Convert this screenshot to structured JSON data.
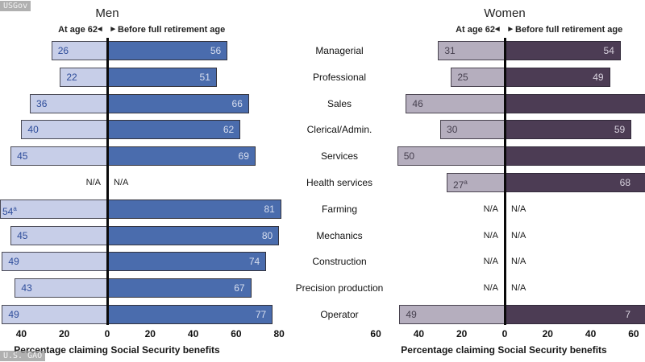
{
  "watermarks": {
    "top": "USGov",
    "bottom": "U.S. GAO"
  },
  "panels": {
    "men": {
      "title": "Men",
      "subtitle_left": "At age 62",
      "subtitle_arrows": "◄ ►",
      "subtitle_right": "Before full retirement age",
      "axis_label": "Percentage claiming Social Security benefits",
      "ticks": [
        {
          "label": "40",
          "v": -40
        },
        {
          "label": "20",
          "v": -20
        },
        {
          "label": "0",
          "v": 0
        },
        {
          "label": "20",
          "v": 20
        },
        {
          "label": "40",
          "v": 40
        },
        {
          "label": "60",
          "v": 60
        },
        {
          "label": "80",
          "v": 80
        }
      ]
    },
    "women": {
      "title": "Women",
      "subtitle_left": "At age 62",
      "subtitle_arrows": "◄ ►",
      "subtitle_right": "Before full retirement age",
      "axis_label": "Percentage claiming Social Security benefits",
      "ticks": [
        {
          "label": "60",
          "v": -60
        },
        {
          "label": "40",
          "v": -40
        },
        {
          "label": "20",
          "v": -20
        },
        {
          "label": "0",
          "v": 0
        },
        {
          "label": "20",
          "v": 20
        },
        {
          "label": "40",
          "v": 40
        },
        {
          "label": "60",
          "v": 60
        }
      ]
    }
  },
  "colors": {
    "men_left_fill": "#c7cee8",
    "men_left_text": "#2d4c9a",
    "men_left_border": "#4a4a55",
    "men_right_fill": "#4a6cad",
    "men_right_text": "#d7deef",
    "men_right_border": "#33333d",
    "women_left_fill": "#b5aebe",
    "women_left_text": "#453f4e",
    "women_left_border": "#4a4450",
    "women_right_fill": "#4c3c54",
    "women_right_text": "#d8d2de",
    "women_right_border": "#322a3a",
    "axis_line": "#0a0a0a"
  },
  "chart_data": {
    "type": "bar",
    "orientation": "horizontal-diverging",
    "na_label": "N/A",
    "xlim_men": [
      -40,
      80
    ],
    "xlim_women": [
      -60,
      60
    ],
    "categories": [
      "Managerial",
      "Professional",
      "Sales",
      "Clerical/Admin.",
      "Services",
      "Health services",
      "Farming",
      "Mechanics",
      "Construction",
      "Precision production",
      "Operator"
    ],
    "series": [
      {
        "name": "Men - At age 62",
        "values": [
          26,
          22,
          36,
          40,
          45,
          null,
          54,
          45,
          49,
          43,
          49
        ]
      },
      {
        "name": "Men - Before full retirement age",
        "values": [
          56,
          51,
          66,
          62,
          69,
          null,
          81,
          80,
          74,
          67,
          77
        ]
      },
      {
        "name": "Women - At age 62",
        "values": [
          31,
          25,
          46,
          30,
          50,
          27,
          null,
          null,
          null,
          null,
          49
        ]
      },
      {
        "name": "Women - Before full retirement age",
        "values": [
          54,
          49,
          null,
          59,
          null,
          68,
          null,
          null,
          null,
          null,
          null
        ]
      }
    ],
    "rows": [
      {
        "category": "Managerial",
        "men": {
          "left": {
            "value": 26,
            "label": "26"
          },
          "right": {
            "value": 56,
            "label": "56"
          }
        },
        "women": {
          "left": {
            "value": 31,
            "label": "31"
          },
          "right": {
            "value": 54,
            "label": "54"
          }
        }
      },
      {
        "category": "Professional",
        "men": {
          "left": {
            "value": 22,
            "label": "22"
          },
          "right": {
            "value": 51,
            "label": "51"
          }
        },
        "women": {
          "left": {
            "value": 25,
            "label": "25"
          },
          "right": {
            "value": 49,
            "label": "49"
          }
        }
      },
      {
        "category": "Sales",
        "men": {
          "left": {
            "value": 36,
            "label": "36"
          },
          "right": {
            "value": 66,
            "label": "66"
          }
        },
        "women": {
          "left": {
            "value": 46,
            "label": "46"
          },
          "right": {
            "value": null,
            "label": "",
            "clipped": true
          }
        }
      },
      {
        "category": "Clerical/Admin.",
        "men": {
          "left": {
            "value": 40,
            "label": "40"
          },
          "right": {
            "value": 62,
            "label": "62"
          }
        },
        "women": {
          "left": {
            "value": 30,
            "label": "30"
          },
          "right": {
            "value": 59,
            "label": "59"
          }
        }
      },
      {
        "category": "Services",
        "men": {
          "left": {
            "value": 45,
            "label": "45"
          },
          "right": {
            "value": 69,
            "label": "69"
          }
        },
        "women": {
          "left": {
            "value": 50,
            "label": "50"
          },
          "right": {
            "value": null,
            "label": "",
            "clipped": true
          }
        }
      },
      {
        "category": "Health services",
        "men": {
          "na": true
        },
        "women": {
          "left": {
            "value": 27,
            "label": "27",
            "sup": "a"
          },
          "right": {
            "value": 68,
            "label": "68"
          }
        }
      },
      {
        "category": "Farming",
        "men": {
          "left": {
            "value": 54,
            "label": "54",
            "sup": "a",
            "clipped": true
          },
          "right": {
            "value": 81,
            "label": "81"
          }
        },
        "women": {
          "na": true
        }
      },
      {
        "category": "Mechanics",
        "men": {
          "left": {
            "value": 45,
            "label": "45"
          },
          "right": {
            "value": 80,
            "label": "80"
          }
        },
        "women": {
          "na": true
        }
      },
      {
        "category": "Construction",
        "men": {
          "left": {
            "value": 49,
            "label": "49"
          },
          "right": {
            "value": 74,
            "label": "74"
          }
        },
        "women": {
          "na": true
        }
      },
      {
        "category": "Precision production",
        "men": {
          "left": {
            "value": 43,
            "label": "43"
          },
          "right": {
            "value": 67,
            "label": "67"
          }
        },
        "women": {
          "na": true
        }
      },
      {
        "category": "Operator",
        "men": {
          "left": {
            "value": 49,
            "label": "49"
          },
          "right": {
            "value": 77,
            "label": "77"
          }
        },
        "women": {
          "left": {
            "value": 49,
            "label": "49"
          },
          "right": {
            "value": null,
            "label": "7",
            "clipped": true
          }
        }
      }
    ]
  }
}
